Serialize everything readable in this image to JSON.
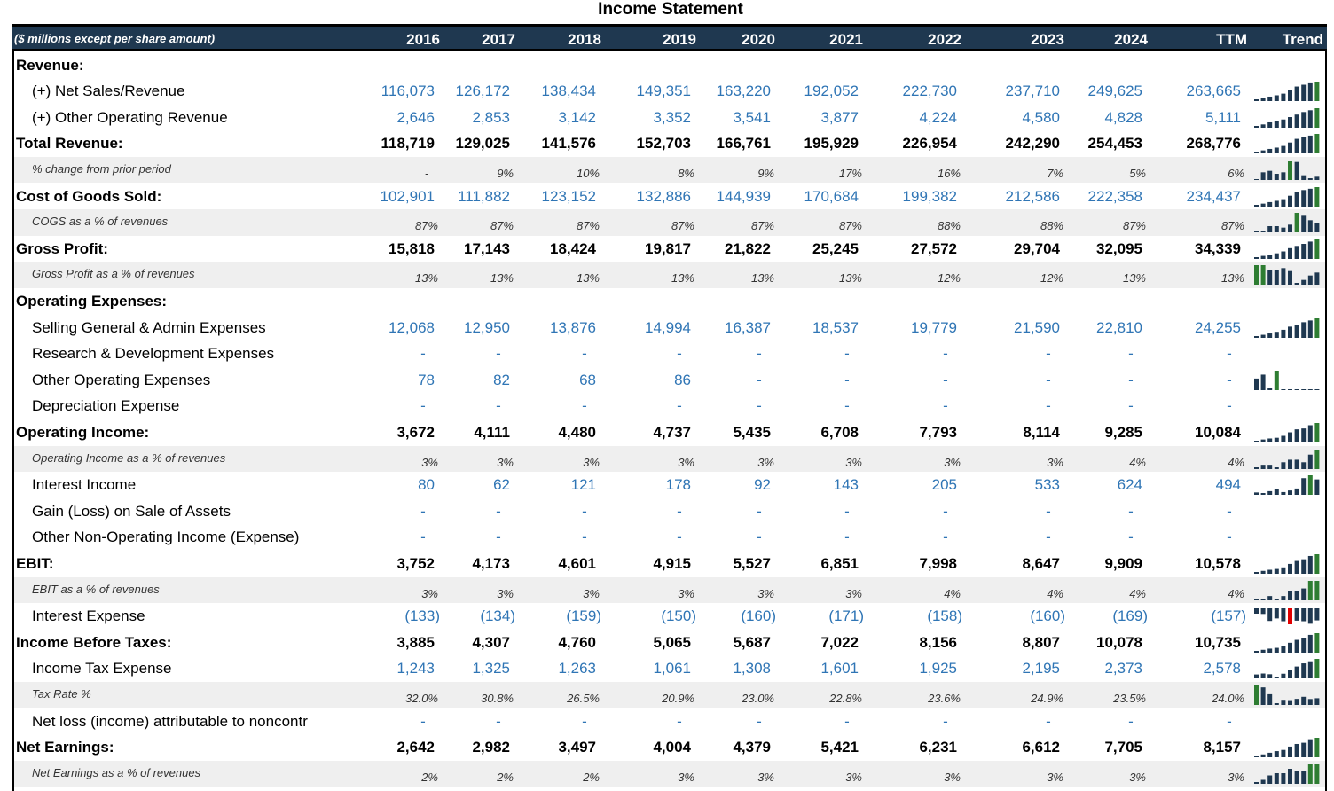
{
  "title": "Income Statement",
  "header": {
    "label": "($ millions except per share amount)",
    "years": [
      "2016",
      "2017",
      "2018",
      "2019",
      "2020",
      "2021",
      "2022",
      "2023",
      "2024",
      "TTM"
    ],
    "trend": "Trend"
  },
  "colors": {
    "header_bg": "#1f3850",
    "blue": "#2f75b5",
    "spark": "#2e7d32",
    "spark_dark": "#1f3850",
    "spark_negative": "#e00000",
    "shade": "#efefef"
  },
  "rows": [
    {
      "label": "Revenue:",
      "style": "header",
      "values": []
    },
    {
      "label": "(+) Net Sales/Revenue",
      "style": "input",
      "values": [
        "116,073",
        "126,172",
        "138,434",
        "149,351",
        "163,220",
        "192,052",
        "222,730",
        "237,710",
        "249,625",
        "263,665"
      ],
      "spark": [
        116073,
        126172,
        138434,
        149351,
        163220,
        192052,
        222730,
        237710,
        249625,
        263665
      ]
    },
    {
      "label": "(+) Other Operating Revenue",
      "style": "input",
      "values": [
        "2,646",
        "2,853",
        "3,142",
        "3,352",
        "3,541",
        "3,877",
        "4,224",
        "4,580",
        "4,828",
        "5,111"
      ],
      "spark": [
        2646,
        2853,
        3142,
        3352,
        3541,
        3877,
        4224,
        4580,
        4828,
        5111
      ]
    },
    {
      "label": "Total Revenue:",
      "style": "total",
      "values": [
        "118,719",
        "129,025",
        "141,576",
        "152,703",
        "166,761",
        "195,929",
        "226,954",
        "242,290",
        "254,453",
        "268,776"
      ],
      "spark": [
        118719,
        129025,
        141576,
        152703,
        166761,
        195929,
        226954,
        242290,
        254453,
        268776
      ]
    },
    {
      "label": "% change from prior period",
      "style": "pct",
      "values": [
        "-",
        "9%",
        "10%",
        "8%",
        "9%",
        "17%",
        "16%",
        "7%",
        "5%",
        "6%"
      ],
      "spark": [
        0,
        9,
        10,
        8,
        9,
        17,
        16,
        7,
        5,
        6
      ]
    },
    {
      "label": "Cost of Goods Sold:",
      "style": "input-bold-label",
      "values": [
        "102,901",
        "111,882",
        "123,152",
        "132,886",
        "144,939",
        "170,684",
        "199,382",
        "212,586",
        "222,358",
        "234,437"
      ],
      "spark": [
        102901,
        111882,
        123152,
        132886,
        144939,
        170684,
        199382,
        212586,
        222358,
        234437
      ]
    },
    {
      "label": "COGS as a % of revenues",
      "style": "pct",
      "values": [
        "87%",
        "87%",
        "87%",
        "87%",
        "87%",
        "87%",
        "88%",
        "88%",
        "87%",
        "87%"
      ],
      "spark": [
        86.7,
        86.7,
        87.0,
        87.0,
        86.9,
        87.1,
        87.9,
        87.7,
        87.4,
        87.2
      ]
    },
    {
      "label": "Gross Profit:",
      "style": "total",
      "values": [
        "15,818",
        "17,143",
        "18,424",
        "19,817",
        "21,822",
        "25,245",
        "27,572",
        "29,704",
        "32,095",
        "34,339"
      ],
      "spark": [
        15818,
        17143,
        18424,
        19817,
        21822,
        25245,
        27572,
        29704,
        32095,
        34339
      ]
    },
    {
      "label": "Gross Profit as a % of revenues",
      "style": "pct",
      "values": [
        "13%",
        "13%",
        "13%",
        "13%",
        "13%",
        "13%",
        "12%",
        "12%",
        "13%",
        "13%"
      ],
      "spark": [
        13.3,
        13.3,
        13.0,
        13.0,
        13.1,
        12.9,
        12.1,
        12.3,
        12.6,
        12.8
      ]
    },
    {
      "label": "Operating Expenses:",
      "style": "header",
      "values": []
    },
    {
      "label": "Selling General & Admin Expenses",
      "style": "input",
      "values": [
        "12,068",
        "12,950",
        "13,876",
        "14,994",
        "16,387",
        "18,537",
        "19,779",
        "21,590",
        "22,810",
        "24,255"
      ],
      "spark": [
        12068,
        12950,
        13876,
        14994,
        16387,
        18537,
        19779,
        21590,
        22810,
        24255
      ]
    },
    {
      "label": "Research & Development Expenses",
      "style": "input",
      "values": [
        "-",
        "-",
        "-",
        "-",
        "-",
        "-",
        "-",
        "-",
        "-",
        "-"
      ]
    },
    {
      "label": "Other Operating Expenses",
      "style": "input",
      "values": [
        "78",
        "82",
        "68",
        "86",
        "-",
        "-",
        "-",
        "-",
        "-",
        "-"
      ],
      "spark": [
        78,
        82,
        68,
        86,
        0,
        0,
        0,
        0,
        0,
        0
      ]
    },
    {
      "label": "Depreciation Expense",
      "style": "input",
      "values": [
        "-",
        "-",
        "-",
        "-",
        "-",
        "-",
        "-",
        "-",
        "-",
        "-"
      ]
    },
    {
      "label": "Operating Income:",
      "style": "total",
      "values": [
        "3,672",
        "4,111",
        "4,480",
        "4,737",
        "5,435",
        "6,708",
        "7,793",
        "8,114",
        "9,285",
        "10,084"
      ],
      "spark": [
        3672,
        4111,
        4480,
        4737,
        5435,
        6708,
        7793,
        8114,
        9285,
        10084
      ]
    },
    {
      "label": "Operating Income as a % of revenues",
      "style": "pct",
      "values": [
        "3%",
        "3%",
        "3%",
        "3%",
        "3%",
        "3%",
        "3%",
        "3%",
        "4%",
        "4%"
      ],
      "spark": [
        3.1,
        3.2,
        3.2,
        3.1,
        3.3,
        3.4,
        3.4,
        3.3,
        3.6,
        3.8
      ]
    },
    {
      "label": "Interest Income",
      "style": "input",
      "values": [
        "80",
        "62",
        "121",
        "178",
        "92",
        "143",
        "205",
        "533",
        "624",
        "494"
      ],
      "spark": [
        80,
        62,
        121,
        178,
        92,
        143,
        205,
        533,
        624,
        494
      ]
    },
    {
      "label": "Gain (Loss) on Sale of Assets",
      "style": "input",
      "values": [
        "-",
        "-",
        "-",
        "-",
        "-",
        "-",
        "-",
        "-",
        "-",
        "-"
      ]
    },
    {
      "label": "Other Non-Operating Income (Expense)",
      "style": "input",
      "values": [
        "-",
        "-",
        "-",
        "-",
        "-",
        "-",
        "-",
        "-",
        "-",
        "-"
      ]
    },
    {
      "label": "EBIT:",
      "style": "total",
      "values": [
        "3,752",
        "4,173",
        "4,601",
        "4,915",
        "5,527",
        "6,851",
        "7,998",
        "8,647",
        "9,909",
        "10,578"
      ],
      "spark": [
        3752,
        4173,
        4601,
        4915,
        5527,
        6851,
        7998,
        8647,
        9909,
        10578
      ]
    },
    {
      "label": "EBIT as a % of revenues",
      "style": "pct",
      "values": [
        "3%",
        "3%",
        "3%",
        "3%",
        "3%",
        "3%",
        "4%",
        "4%",
        "4%",
        "4%"
      ],
      "spark": [
        3.2,
        3.2,
        3.3,
        3.2,
        3.3,
        3.5,
        3.5,
        3.6,
        3.9,
        3.9
      ]
    },
    {
      "label": "Interest Expense",
      "style": "input",
      "values": [
        "(133)",
        "(134)",
        "(159)",
        "(150)",
        "(160)",
        "(171)",
        "(158)",
        "(160)",
        "(169)",
        "(157)"
      ],
      "spark": [
        -133,
        -134,
        -159,
        -150,
        -160,
        -171,
        -158,
        -160,
        -169,
        -157
      ]
    },
    {
      "label": "Income Before Taxes:",
      "style": "total",
      "values": [
        "3,885",
        "4,307",
        "4,760",
        "5,065",
        "5,687",
        "7,022",
        "8,156",
        "8,807",
        "10,078",
        "10,735"
      ],
      "spark": [
        3885,
        4307,
        4760,
        5065,
        5687,
        7022,
        8156,
        8807,
        10078,
        10735
      ]
    },
    {
      "label": "Income Tax Expense",
      "style": "input",
      "values": [
        "1,243",
        "1,325",
        "1,263",
        "1,061",
        "1,308",
        "1,601",
        "1,925",
        "2,195",
        "2,373",
        "2,578"
      ],
      "spark": [
        1243,
        1325,
        1263,
        1061,
        1308,
        1601,
        1925,
        2195,
        2373,
        2578
      ]
    },
    {
      "label": "Tax Rate %",
      "style": "pct",
      "values": [
        "32.0%",
        "30.8%",
        "26.5%",
        "20.9%",
        "23.0%",
        "22.8%",
        "23.6%",
        "24.9%",
        "23.5%",
        "24.0%"
      ],
      "spark": [
        32.0,
        30.8,
        26.5,
        20.9,
        23.0,
        22.8,
        23.6,
        24.9,
        23.5,
        24.0
      ]
    },
    {
      "label": "Net loss (income) attributable to noncontr",
      "style": "input",
      "values": [
        "-",
        "-",
        "-",
        "-",
        "-",
        "-",
        "-",
        "-",
        "-",
        "-"
      ]
    },
    {
      "label": "Net Earnings:",
      "style": "total",
      "values": [
        "2,642",
        "2,982",
        "3,497",
        "4,004",
        "4,379",
        "5,421",
        "6,231",
        "6,612",
        "7,705",
        "8,157"
      ],
      "spark": [
        2642,
        2982,
        3497,
        4004,
        4379,
        5421,
        6231,
        6612,
        7705,
        8157
      ]
    },
    {
      "label": "Net Earnings as a % of revenues",
      "style": "pct",
      "values": [
        "2%",
        "2%",
        "2%",
        "3%",
        "3%",
        "3%",
        "3%",
        "3%",
        "3%",
        "3%"
      ],
      "spark": [
        2.2,
        2.3,
        2.5,
        2.6,
        2.6,
        2.8,
        2.7,
        2.7,
        3.0,
        3.0
      ]
    }
  ]
}
